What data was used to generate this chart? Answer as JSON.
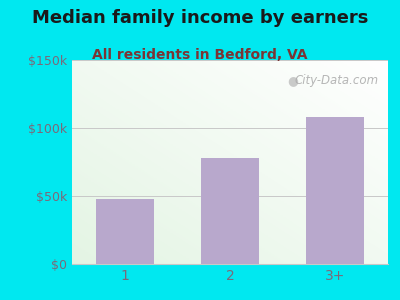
{
  "title": "Median family income by earners",
  "subtitle": "All residents in Bedford, VA",
  "categories": [
    "1",
    "2",
    "3+"
  ],
  "values": [
    48000,
    78000,
    108000
  ],
  "bar_color": "#b8a8cc",
  "background_outer": "#00e8f0",
  "ylim": [
    0,
    150000
  ],
  "yticks": [
    0,
    50000,
    100000,
    150000
  ],
  "ytick_labels": [
    "$0",
    "$50k",
    "$100k",
    "$150k"
  ],
  "title_fontsize": 13,
  "subtitle_fontsize": 10,
  "watermark": "City-Data.com",
  "title_color": "#1a1a1a",
  "subtitle_color": "#7a3535",
  "tick_color": "#7a6a7a",
  "grid_color": "#c8c8c8"
}
